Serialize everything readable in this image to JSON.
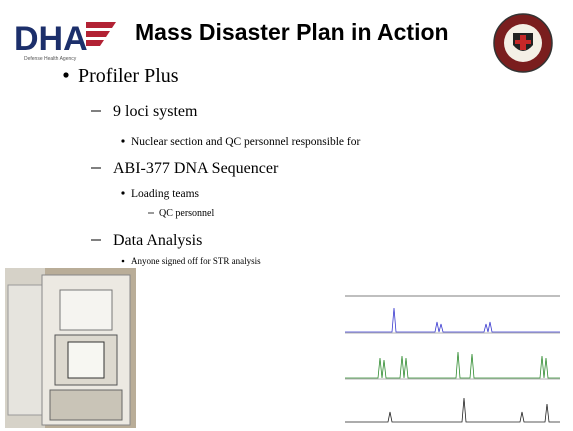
{
  "header": {
    "logo": "DHA",
    "logo_subtitle": "Defense Health Agency",
    "title": "Mass Disaster Plan in Action"
  },
  "bullets": [
    {
      "text": "Profiler Plus",
      "children": [
        {
          "text": "9 loci system",
          "children": [
            {
              "text": "Nuclear section and QC personnel responsible for"
            }
          ]
        },
        {
          "text": "ABI-377 DNA Sequencer",
          "children": [
            {
              "text": "Loading teams",
              "children": [
                {
                  "text": "QC personnel"
                }
              ]
            }
          ]
        },
        {
          "text": "Data Analysis",
          "children": [
            {
              "text": "Anyone signed off for STR analysis"
            }
          ]
        }
      ]
    }
  ]
}
